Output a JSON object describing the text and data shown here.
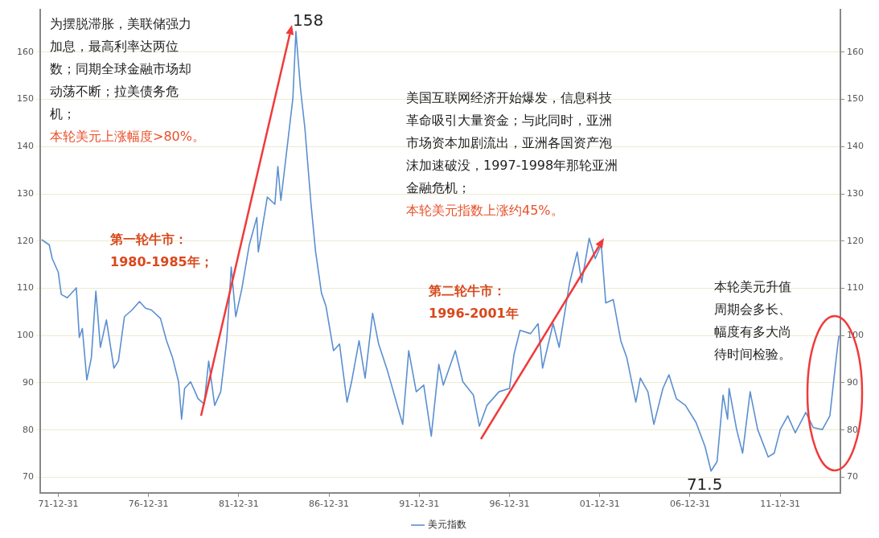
{
  "chart_data": {
    "type": "line",
    "legend": "bottom",
    "grid": "y",
    "xlim": [
      "1971-01",
      "2015-05"
    ],
    "xticks": [
      {
        "value": "1971-12-31",
        "label": "71-12-31"
      },
      {
        "value": "1976-12-31",
        "label": "76-12-31"
      },
      {
        "value": "1981-12-31",
        "label": "81-12-31"
      },
      {
        "value": "1986-12-31",
        "label": "86-12-31"
      },
      {
        "value": "1991-12-31",
        "label": "91-12-31"
      },
      {
        "value": "1996-12-31",
        "label": "96-12-31"
      },
      {
        "value": "2001-12-31",
        "label": "01-12-31"
      },
      {
        "value": "2006-12-31",
        "label": "06-12-31"
      },
      {
        "value": "2011-12-31",
        "label": "11-12-31"
      }
    ],
    "ylim": [
      66.7,
      169
    ],
    "yticks": [
      70,
      80,
      90,
      100,
      110,
      120,
      130,
      140,
      150,
      160
    ],
    "y2lim": [
      66.7,
      169
    ],
    "y2ticks": [
      70,
      80,
      90,
      100,
      110,
      120,
      130,
      140,
      150,
      160
    ],
    "annotations": [
      "为摆脱滞胀，美联储强力加息，最高利率达两位数；同期全球金融市场却动荡不断；拉美债务危机；",
      "本轮美元上涨幅度>80%。",
      "第一轮牛市：\n1980-1985年；",
      "美国互联网经济开始爆发，信息科技革命吸引大量资金；与此同时，亚洲市场资本加剧流出，亚洲各国资产泡沫加速破没，1997-1998年那轮亚洲金融危机；",
      "本轮美元指数上涨约45%。",
      "第二轮牛市：\n1996-2001年",
      "本轮美元升值周期会多长、幅度有多大尚待时间检验。",
      {
        "text": "158",
        "x": "1985-03",
        "y": 164.4
      },
      {
        "text": "71.5",
        "x": "2008-03",
        "y": 71.3
      }
    ],
    "x": [
      "1971-02",
      "1971-07",
      "1971-09",
      "1972-01",
      "1972-03",
      "1972-07",
      "1973-01",
      "1973-03",
      "1973-05",
      "1973-08",
      "1973-11",
      "1974-02",
      "1974-05",
      "1974-09",
      "1975-02",
      "1975-05",
      "1975-09",
      "1976-02",
      "1976-07",
      "1976-11",
      "1977-03",
      "1977-09",
      "1978-01",
      "1978-05",
      "1978-09",
      "1978-11",
      "1979-01",
      "1979-05",
      "1979-10",
      "1980-02",
      "1980-05",
      "1980-09",
      "1981-01",
      "1981-05",
      "1981-08",
      "1981-11",
      "1982-03",
      "1982-08",
      "1983-01",
      "1983-02",
      "1983-08",
      "1984-01",
      "1984-03",
      "1984-05",
      "1984-09",
      "1985-01",
      "1985-03",
      "1985-06",
      "1985-09",
      "1986-01",
      "1986-04",
      "1986-08",
      "1986-11",
      "1987-04",
      "1987-08",
      "1988-01",
      "1988-04",
      "1988-09",
      "1989-01",
      "1989-06",
      "1989-10",
      "1990-04",
      "1990-11",
      "1991-02",
      "1991-06",
      "1991-11",
      "1992-04",
      "1992-09",
      "1993-02",
      "1993-05",
      "1994-01",
      "1994-06",
      "1995-01",
      "1995-05",
      "1995-10",
      "1996-06",
      "1997-01",
      "1997-04",
      "1997-08",
      "1998-03",
      "1998-08",
      "1998-11",
      "1999-06",
      "1999-10",
      "2000-05",
      "2000-10",
      "2001-01",
      "2001-06",
      "2001-10",
      "2002-02",
      "2002-05",
      "2002-10",
      "2003-03",
      "2003-07",
      "2004-01",
      "2004-04",
      "2004-09",
      "2005-01",
      "2005-07",
      "2005-11",
      "2006-04",
      "2006-10",
      "2007-05",
      "2007-11",
      "2008-03",
      "2008-07",
      "2008-11",
      "2009-02",
      "2009-03",
      "2009-08",
      "2009-12",
      "2010-05",
      "2010-10",
      "2011-05",
      "2011-09",
      "2012-01",
      "2012-06",
      "2012-11",
      "2013-06",
      "2013-11",
      "2014-05",
      "2014-10",
      "2015-02",
      "2015-04"
    ],
    "series": [
      {
        "name": "美元指数",
        "color": "#5b8fd0",
        "values": [
          120.3,
          119.2,
          116.3,
          113.4,
          108.7,
          108,
          110.1,
          99.6,
          101.5,
          90.6,
          95.3,
          109.4,
          97.5,
          103.3,
          93.1,
          94.6,
          104,
          105.4,
          107.2,
          105.8,
          105.4,
          103.6,
          98.9,
          95.3,
          90.2,
          82.3,
          88.8,
          90.2,
          86.6,
          85.5,
          94.6,
          85.2,
          88.1,
          98.9,
          114.5,
          104,
          109.8,
          119.2,
          125,
          117.7,
          129.3,
          127.8,
          135.8,
          128.6,
          139.4,
          150.3,
          164.4,
          152.4,
          143.8,
          128,
          118,
          109,
          106.2,
          96.8,
          98.2,
          85.9,
          90.2,
          98.9,
          91,
          104.7,
          98.2,
          92.4,
          84.5,
          81.2,
          96.8,
          88.1,
          89.5,
          78.7,
          93.9,
          89.5,
          96.8,
          90.2,
          87.4,
          80.8,
          85.2,
          88.1,
          88.8,
          96,
          101.1,
          100.4,
          102.5,
          93.1,
          102.5,
          97.5,
          111.2,
          117.7,
          111.2,
          120.6,
          116.3,
          119.2,
          106.9,
          107.6,
          98.9,
          95.3,
          85.9,
          91,
          88.1,
          81.2,
          88.8,
          91.7,
          86.6,
          85.2,
          81.6,
          76.5,
          71.3,
          73.3,
          87.4,
          82.3,
          88.8,
          80.1,
          75.1,
          88.1,
          80.1,
          74.3,
          75.1,
          80.1,
          83,
          79.4,
          83.7,
          80.5,
          80.1,
          83,
          94.6,
          100
        ]
      }
    ]
  }
}
